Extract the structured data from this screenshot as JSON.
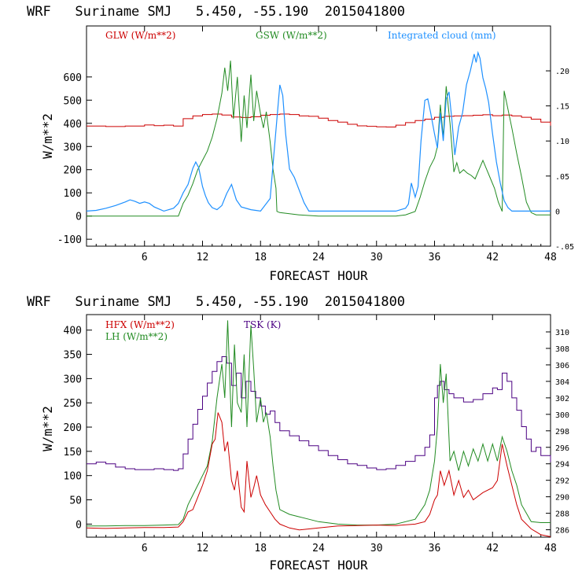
{
  "chart_data": [
    {
      "type": "line",
      "title": "WRF   Suriname SMJ   5.450, -55.190  2015041800",
      "xlabel": "FORECAST HOUR",
      "ylabel": "W/m**2",
      "xlim": [
        0,
        48
      ],
      "ylim": [
        -130,
        820
      ],
      "y2lim": [
        -0.05,
        0.264
      ],
      "xticks": [
        "6",
        "12",
        "18",
        "24",
        "30",
        "36",
        "42",
        "48"
      ],
      "yticks": [
        "-100",
        "0",
        "100",
        "200",
        "300",
        "400",
        "500",
        "600"
      ],
      "y2ticks": [
        "-.05",
        "0",
        ".05",
        ".10",
        ".15",
        ".20"
      ],
      "legend": [
        "GLW (W/m**2)",
        "GSW (W/m**2)",
        "Integrated cloud (mm)"
      ],
      "colors": {
        "GLW": "#cc0000",
        "GSW": "#228b22",
        "CLOUD": "#1e90ff"
      },
      "series": [
        {
          "name": "GLW (W/m**2)",
          "axis": "left",
          "step": true,
          "x": [
            0,
            2,
            4,
            6,
            7,
            8,
            9,
            10,
            11,
            12,
            13,
            14,
            15,
            16,
            17,
            18,
            19,
            20,
            21,
            22,
            23,
            24,
            25,
            26,
            27,
            28,
            29,
            30,
            31,
            32,
            33,
            34,
            35,
            36,
            37,
            38,
            39,
            40,
            41,
            42,
            43,
            44,
            45,
            46,
            47,
            48
          ],
          "y": [
            388,
            386,
            388,
            393,
            390,
            392,
            388,
            420,
            432,
            438,
            440,
            436,
            427,
            425,
            428,
            435,
            438,
            440,
            438,
            432,
            430,
            422,
            412,
            405,
            396,
            389,
            387,
            385,
            384,
            392,
            403,
            412,
            418,
            426,
            430,
            432,
            433,
            435,
            437,
            433,
            436,
            432,
            426,
            418,
            405,
            390
          ]
        },
        {
          "name": "GSW (W/m**2)",
          "axis": "left",
          "step": false,
          "x": [
            0,
            9.5,
            10,
            10.5,
            11,
            11.5,
            12,
            12.5,
            13,
            13.5,
            14,
            14.3,
            14.6,
            14.9,
            15.2,
            15.6,
            16,
            16.3,
            16.6,
            17,
            17.3,
            17.6,
            18,
            18.3,
            18.6,
            19,
            19.3,
            19.6,
            19.7,
            20,
            21,
            22,
            24,
            26,
            28,
            30,
            32,
            33,
            34,
            34.5,
            35,
            35.5,
            36,
            36.3,
            36.6,
            36.9,
            37.2,
            37.6,
            38,
            38.3,
            38.6,
            39,
            39.4,
            39.8,
            40.2,
            40.6,
            41,
            41.4,
            41.8,
            42.2,
            42.6,
            43,
            43.2,
            43.5,
            44,
            44.5,
            45,
            45.5,
            46,
            46.5,
            48
          ],
          "y": [
            0,
            0,
            55,
            90,
            140,
            200,
            240,
            280,
            340,
            420,
            530,
            640,
            540,
            670,
            420,
            600,
            320,
            520,
            380,
            610,
            410,
            540,
            440,
            380,
            450,
            320,
            200,
            120,
            20,
            15,
            10,
            5,
            0,
            0,
            0,
            0,
            0,
            5,
            20,
            80,
            150,
            210,
            250,
            300,
            480,
            340,
            560,
            400,
            190,
            230,
            185,
            200,
            185,
            175,
            160,
            200,
            240,
            200,
            160,
            120,
            60,
            20,
            540,
            480,
            380,
            270,
            170,
            60,
            15,
            5,
            5
          ]
        },
        {
          "name": "Integrated cloud (mm)",
          "axis": "right",
          "step": false,
          "x": [
            0,
            1,
            2,
            3,
            4,
            4.5,
            5,
            5.5,
            6,
            6.5,
            7,
            8,
            9,
            9.5,
            10,
            10.5,
            11,
            11.3,
            11.6,
            12,
            12.3,
            12.6,
            13,
            13.5,
            14,
            14.5,
            15,
            15.5,
            16,
            17,
            18,
            19,
            19.5,
            20,
            20.3,
            20.6,
            21,
            21.5,
            22,
            22.5,
            23,
            24,
            26,
            28,
            30,
            32,
            32.5,
            33,
            33.3,
            33.6,
            34,
            34.3,
            34.6,
            35,
            35.3,
            35.6,
            36,
            36.3,
            36.6,
            36.9,
            37.2,
            37.5,
            37.8,
            38.1,
            38.5,
            38.9,
            39.3,
            39.7,
            40.1,
            40.3,
            40.5,
            40.7,
            41,
            41.3,
            41.6,
            42,
            42.4,
            42.8,
            43.2,
            43.6,
            44,
            44.5,
            45,
            46,
            48
          ],
          "y": [
            0,
            0.001,
            0.004,
            0.008,
            0.013,
            0.016,
            0.014,
            0.011,
            0.013,
            0.011,
            0.006,
            0,
            0.004,
            0.011,
            0.026,
            0.038,
            0.061,
            0.07,
            0.062,
            0.035,
            0.022,
            0.012,
            0.005,
            0.002,
            0.008,
            0.025,
            0.038,
            0.016,
            0.006,
            0.002,
            0,
            0.018,
            0.1,
            0.18,
            0.165,
            0.11,
            0.06,
            0.048,
            0.03,
            0.012,
            0,
            0,
            0,
            0,
            0,
            0,
            0.002,
            0.004,
            0.01,
            0.04,
            0.02,
            0.035,
            0.1,
            0.158,
            0.16,
            0.14,
            0.11,
            0.09,
            0.14,
            0.1,
            0.16,
            0.17,
            0.13,
            0.08,
            0.12,
            0.14,
            0.18,
            0.2,
            0.224,
            0.212,
            0.226,
            0.218,
            0.19,
            0.175,
            0.155,
            0.11,
            0.07,
            0.04,
            0.015,
            0.005,
            0,
            0,
            0,
            0,
            0
          ]
        }
      ]
    },
    {
      "type": "line",
      "title": "WRF   Suriname SMJ   5.450, -55.190  2015041800",
      "xlabel": "FORECAST HOUR",
      "ylabel": "W/m**2",
      "xlim": [
        0,
        48
      ],
      "ylim": [
        -27,
        432
      ],
      "y2lim": [
        285.1,
        312.1
      ],
      "xticks": [
        "6",
        "12",
        "18",
        "24",
        "30",
        "36",
        "42",
        "48"
      ],
      "yticks": [
        "0",
        "50",
        "100",
        "150",
        "200",
        "250",
        "300",
        "350",
        "400"
      ],
      "y2ticks": [
        "286",
        "288",
        "290",
        "292",
        "294",
        "296",
        "298",
        "300",
        "302",
        "304",
        "306",
        "308",
        "310"
      ],
      "legend": [
        "HFX (W/m**2)",
        "LH (W/m**2)",
        "TSK (K)"
      ],
      "colors": {
        "HFX": "#cc0000",
        "LH": "#228b22",
        "TSK": "#4b0082"
      },
      "series": [
        {
          "name": "HFX (W/m**2)",
          "axis": "left",
          "step": false,
          "x": [
            0,
            2,
            4,
            6,
            8,
            9.5,
            10,
            10.5,
            11,
            11.5,
            12,
            12.5,
            13,
            13.3,
            13.6,
            14,
            14.3,
            14.6,
            15,
            15.3,
            15.6,
            16,
            16.3,
            16.6,
            17,
            17.3,
            17.6,
            18,
            18.5,
            19,
            19.5,
            20,
            21,
            22,
            24,
            26,
            28,
            30,
            32,
            34,
            35,
            35.5,
            36,
            36.3,
            36.6,
            37,
            37.5,
            38,
            38.5,
            39,
            39.5,
            40,
            41,
            42,
            42.5,
            43,
            43.5,
            44,
            44.5,
            45,
            46,
            46.5,
            47,
            48
          ],
          "y": [
            -8,
            -9,
            -8,
            -7,
            -7,
            -6,
            5,
            25,
            30,
            55,
            80,
            110,
            165,
            175,
            230,
            210,
            150,
            170,
            90,
            70,
            110,
            35,
            25,
            130,
            55,
            75,
            100,
            60,
            40,
            25,
            10,
            0,
            -8,
            -12,
            -8,
            -4,
            -3,
            -2,
            -3,
            0,
            5,
            20,
            50,
            60,
            110,
            80,
            110,
            60,
            90,
            55,
            70,
            50,
            65,
            75,
            90,
            165,
            120,
            80,
            40,
            10,
            -10,
            -16,
            -22,
            -26
          ]
        },
        {
          "name": "LH (W/m**2)",
          "axis": "left",
          "step": false,
          "x": [
            0,
            2,
            4,
            6,
            8,
            9.5,
            10,
            10.5,
            11,
            11.5,
            12,
            12.5,
            13,
            13.5,
            14,
            14.3,
            14.6,
            15,
            15.3,
            15.6,
            16,
            16.3,
            16.6,
            17,
            17.3,
            17.6,
            18,
            18.3,
            18.6,
            19,
            19.3,
            19.6,
            20,
            21,
            22,
            23,
            24,
            26,
            28,
            30,
            32,
            34,
            35,
            35.5,
            36,
            36.3,
            36.6,
            36.9,
            37.2,
            37.6,
            38,
            38.5,
            39,
            39.5,
            40,
            40.5,
            41,
            41.5,
            42,
            42.5,
            43,
            43.5,
            44,
            44.5,
            45,
            46,
            47,
            48
          ],
          "y": [
            -4,
            -4,
            -3,
            -3,
            -2,
            -1,
            10,
            40,
            60,
            80,
            100,
            120,
            170,
            260,
            330,
            260,
            420,
            200,
            370,
            250,
            230,
            350,
            200,
            410,
            320,
            210,
            260,
            210,
            230,
            180,
            120,
            70,
            30,
            20,
            15,
            10,
            5,
            0,
            -2,
            -2,
            0,
            10,
            40,
            70,
            130,
            200,
            330,
            250,
            310,
            130,
            150,
            110,
            150,
            120,
            155,
            130,
            165,
            130,
            165,
            130,
            180,
            150,
            110,
            80,
            40,
            5,
            3,
            3
          ]
        },
        {
          "name": "TSK (K)",
          "axis": "right",
          "step": true,
          "x": [
            0,
            1,
            2,
            3,
            4,
            5,
            6,
            7,
            8,
            9,
            9.5,
            10,
            10.5,
            11,
            11.5,
            12,
            12.5,
            13,
            13.5,
            14,
            14.5,
            15,
            15.5,
            16,
            16.5,
            17,
            17.5,
            18,
            18.5,
            19,
            19.5,
            20,
            21,
            22,
            23,
            24,
            25,
            26,
            27,
            28,
            29,
            30,
            31,
            32,
            33,
            34,
            35,
            35.5,
            36,
            36.3,
            36.6,
            37,
            37.5,
            38,
            39,
            40,
            41,
            42,
            42.5,
            43,
            43.5,
            44,
            44.5,
            45,
            45.5,
            46,
            46.5,
            47,
            48
          ],
          "y": [
            294.0,
            294.2,
            294.0,
            293.6,
            293.4,
            293.3,
            293.3,
            293.4,
            293.3,
            293.2,
            293.4,
            295.2,
            297.0,
            298.8,
            300.6,
            302.2,
            303.8,
            305.2,
            306.4,
            307.0,
            306.2,
            303.5,
            305.0,
            302.0,
            304.0,
            302.8,
            302.0,
            301.0,
            300.0,
            300.4,
            299.0,
            298.0,
            297.4,
            296.8,
            296.2,
            295.6,
            295.0,
            294.5,
            294.0,
            293.8,
            293.5,
            293.3,
            293.4,
            293.8,
            294.3,
            295.0,
            296.0,
            297.5,
            302.0,
            303.5,
            304.0,
            303.0,
            302.5,
            302.0,
            301.5,
            301.8,
            302.5,
            303.2,
            303.0,
            305.0,
            304.0,
            302.0,
            300.5,
            298.5,
            297.0,
            295.5,
            296.0,
            295.0,
            294.2
          ]
        }
      ]
    }
  ]
}
